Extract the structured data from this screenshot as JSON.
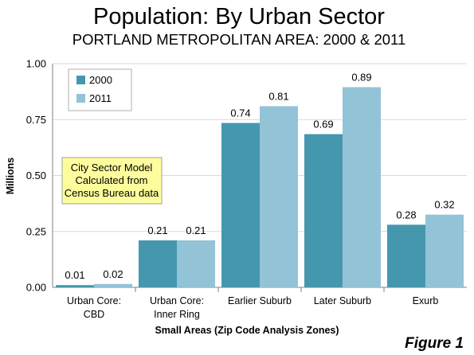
{
  "chart_data": {
    "type": "bar",
    "title": "Population: By Urban Sector",
    "subtitle": "PORTLAND METROPOLITAN AREA: 2000 & 2011",
    "xlabel": "Small Areas (Zip Code Analysis Zones)",
    "ylabel": "Millions",
    "ylim": [
      0,
      1.0
    ],
    "yticks": [
      "0.00",
      "0.25",
      "0.50",
      "0.75",
      "1.00"
    ],
    "grid": true,
    "legend_position": "top-left",
    "categories": [
      [
        "Urban Core:",
        "CBD"
      ],
      [
        "Urban Core:",
        "Inner Ring"
      ],
      [
        "Earlier Suburb"
      ],
      [
        "Later Suburb"
      ],
      [
        "Exurb"
      ]
    ],
    "series": [
      {
        "name": "2000",
        "color": "#4597ae",
        "values": [
          0.01,
          0.21,
          0.735,
          0.685,
          0.28
        ],
        "labels": [
          "0.01",
          "0.21",
          "0.74",
          "0.69",
          "0.28"
        ]
      },
      {
        "name": "2011",
        "color": "#93c3d6",
        "values": [
          0.015,
          0.21,
          0.81,
          0.895,
          0.325
        ],
        "labels": [
          "0.02",
          "0.21",
          "0.81",
          "0.89",
          "0.32"
        ]
      }
    ],
    "annotation": [
      "City Sector Model",
      "Calculated from",
      "Census Bureau data"
    ],
    "figure_label": "Figure 1"
  },
  "colors": {
    "annotation_fill": "#fdfd9d",
    "annotation_border": "#a0a0a0",
    "grid": "#d9d9d9",
    "axis": "#808080"
  }
}
